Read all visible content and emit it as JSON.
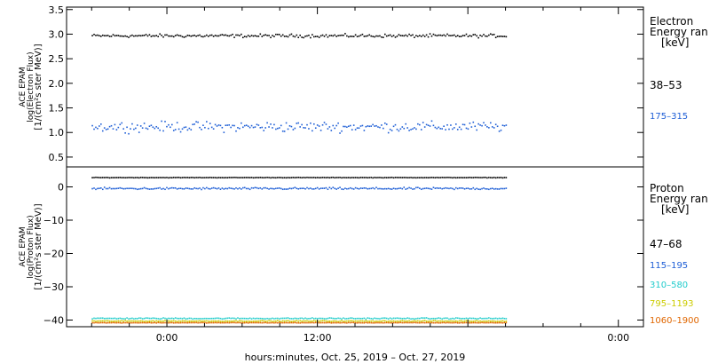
{
  "chart_data": [
    {
      "type": "scatter",
      "ylabel_lines": [
        "ACE EPAM",
        "log(Electron Flux)",
        "[1/(cm²s ster MeV)]"
      ],
      "ylim": [
        0.3,
        3.55
      ],
      "yticks": [
        0.5,
        1.0,
        1.5,
        2.0,
        2.5,
        3.0,
        3.5
      ],
      "ytick_labels": [
        "0.5",
        "1.0",
        "1.5",
        "2.0",
        "2.5",
        "3.0",
        "3.5"
      ],
      "legend_title_lines": [
        "Electron",
        "Energy ran",
        "[keV]"
      ],
      "legend_placement": "right",
      "series": [
        {
          "name": "38–53",
          "color": "#000000",
          "level": 2.98,
          "spread": 0.05
        },
        {
          "name": "175–315",
          "color": "#1f5fd6",
          "level": 1.13,
          "spread": 0.15
        }
      ]
    },
    {
      "type": "scatter",
      "ylabel_lines": [
        "ACE EPAM",
        "log(Proton Flux)",
        "[1/(cm²s ster MeV)]"
      ],
      "ylim": [
        -42,
        6
      ],
      "yticks": [
        -40,
        -30,
        -20,
        -10,
        0
      ],
      "ytick_labels": [
        "−40",
        "−30",
        "−20",
        "−10",
        "0"
      ],
      "legend_title_lines": [
        "Proton",
        "Energy ran",
        "[keV]"
      ],
      "legend_placement": "right",
      "series": [
        {
          "name": "47–68",
          "color": "#000000",
          "level": 3.0,
          "spread": 0.1
        },
        {
          "name": "115–195",
          "color": "#1f5fd6",
          "level": -0.3,
          "spread": 0.45
        },
        {
          "name": "310–580",
          "color": "#22cccc",
          "level": -39.3,
          "spread": 0.25
        },
        {
          "name": "795–1193",
          "color": "#cccc00",
          "level": -40.1,
          "spread": 0.2
        },
        {
          "name": "1060–1900",
          "color": "#e06600",
          "level": -40.6,
          "spread": 0.1
        }
      ]
    }
  ],
  "xaxis": {
    "label": "hours:minutes, Oct. 25, 2019 – Oct. 27, 2019",
    "range_hours": [
      -8,
      38
    ],
    "data_range_hours": [
      -6,
      27
    ],
    "ticks": [
      {
        "hour": 0,
        "label": "0:00"
      },
      {
        "hour": 12,
        "label": "12:00"
      },
      {
        "hour": 24,
        "label": ""
      },
      {
        "hour": 36,
        "label": "0:00"
      }
    ]
  }
}
